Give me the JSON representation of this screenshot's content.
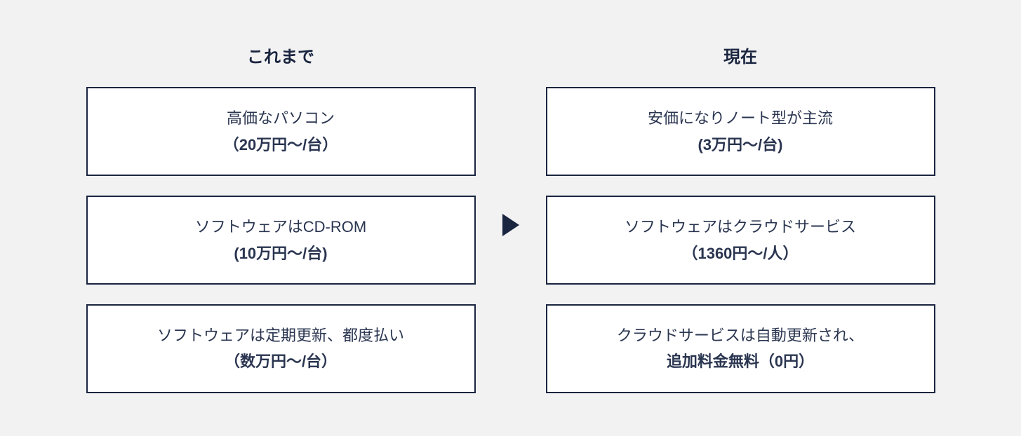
{
  "comparison": {
    "type": "infographic",
    "background_color": "#f2f2f2",
    "box_background": "#ffffff",
    "border_color": "#1a2540",
    "text_color": "#2a3550",
    "header_color": "#1a2540",
    "arrow_color": "#1a2540",
    "header_fontsize": 24,
    "body_fontsize": 22,
    "box_border_width": 2,
    "left": {
      "header": "これまで",
      "items": [
        {
          "line1": "高価なパソコン",
          "line2": "（20万円〜/台）"
        },
        {
          "line1": "ソフトウェアはCD-ROM",
          "line2": "(10万円〜/台)"
        },
        {
          "line1": "ソフトウェアは定期更新、都度払い",
          "line2": "（数万円〜/台）"
        }
      ]
    },
    "right": {
      "header": "現在",
      "items": [
        {
          "line1": "安価になりノート型が主流",
          "line2": "(3万円〜/台)"
        },
        {
          "line1": "ソフトウェアはクラウドサービス",
          "line2": "（1360円〜/人）"
        },
        {
          "line1": "クラウドサービスは自動更新され、",
          "line2": "追加料金無料（0円）"
        }
      ]
    }
  }
}
